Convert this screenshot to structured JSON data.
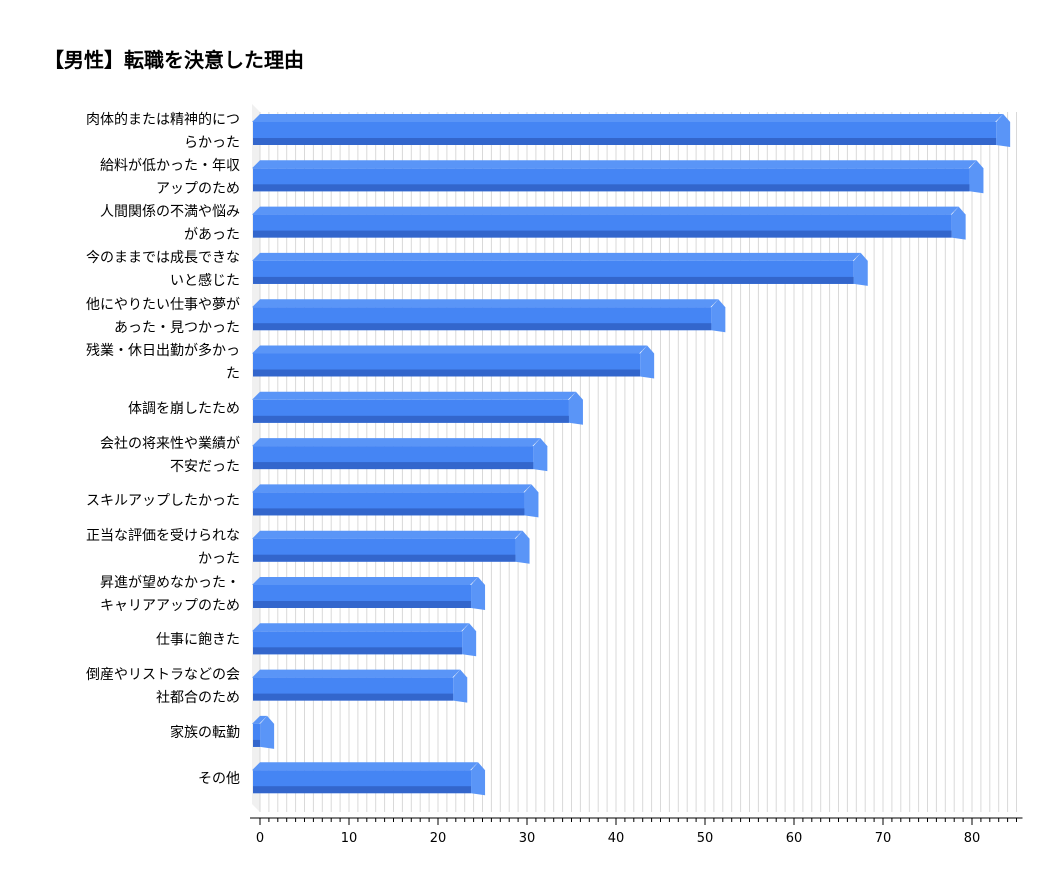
{
  "chart_data": {
    "type": "bar",
    "orientation": "horizontal",
    "title": "【男性】転職を決意した理由",
    "xlabel": "",
    "ylabel": "",
    "categories": [
      "肉体的または精神的につらかった",
      "給料が低かった・年収アップのため",
      "人間関係の不満や悩みがあった",
      "今のままでは成長できないと感じた",
      "他にやりたい仕事や夢があった・見つかった",
      "残業・休日出勤が多かった",
      "体調を崩したため",
      "会社の将来性や業績が不安だった",
      "スキルアップしたかった",
      "正当な評価を受けられなかった",
      "昇進が望めなかった・キャリアアップのため",
      "仕事に飽きた",
      "倒産やリストラなどの会社都合のため",
      "家族の転勤",
      "その他"
    ],
    "category_display": [
      "肉体的または精神的につ\nらかった",
      "給料が低かった・年収\nアップのため",
      "人間関係の不満や悩み\nがあった",
      "今のままでは成長できな\nいと感じた",
      "他にやりたい仕事や夢が\nあった・見つかった",
      "残業・休日出勤が多かっ\nた",
      "体調を崩したため",
      "会社の将来性や業績が\n不安だった",
      "スキルアップしたかった",
      "正当な評価を受けられな\nかった",
      "昇進が望めなかった・\nキャリアアップのため",
      "仕事に飽きた",
      "倒産やリストラなどの会\n社都合のため",
      "家族の転勤",
      "その他"
    ],
    "values": [
      83.5,
      80.5,
      78.5,
      67.5,
      51.5,
      43.5,
      35.5,
      31.5,
      30.5,
      29.5,
      24.5,
      23.5,
      22.5,
      0.8,
      24.5
    ],
    "xlim": [
      0,
      85
    ],
    "xticks": [
      0,
      10,
      20,
      30,
      40,
      50,
      60,
      70,
      80
    ],
    "minor_tick_step": 1,
    "grid": true,
    "legend": "none",
    "bar_color": "#4585f4",
    "bar_top_color": "#3366cc",
    "bar_side_color": "#5a95f7",
    "grid_color": "#d9d9d9"
  }
}
